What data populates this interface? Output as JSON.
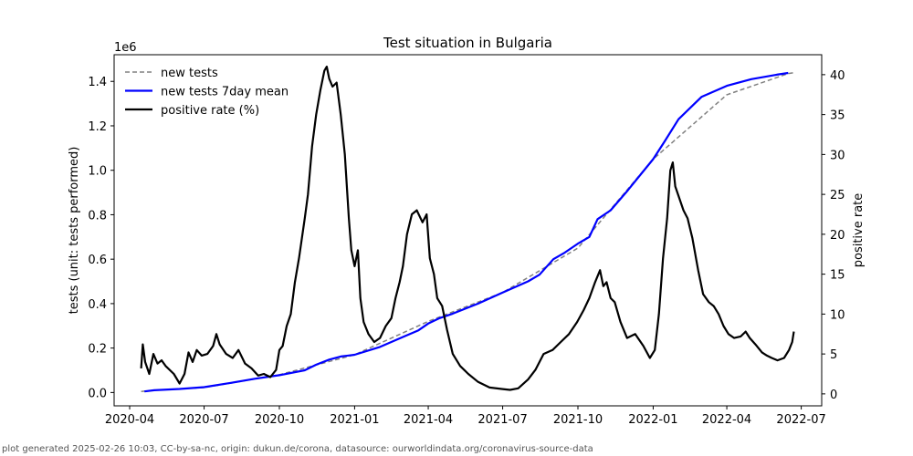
{
  "chart_data": {
    "type": "line",
    "title": "Test situation in Bulgaria",
    "ylabel_left": "tests (unit: tests performed)",
    "ylabel_right": "positive rate",
    "left_scale_label": "1e6",
    "ylim_left": [
      -0.06,
      1.52
    ],
    "ylim_right": [
      -1.5,
      42.5
    ],
    "xlim": [
      "2020-03-13",
      "2022-07-26"
    ],
    "x_ticks": [
      "2020-04",
      "2020-07",
      "2020-10",
      "2021-01",
      "2021-04",
      "2021-07",
      "2021-10",
      "2022-01",
      "2022-04",
      "2022-07"
    ],
    "y_ticks_left": [
      "0.0",
      "0.2",
      "0.4",
      "0.6",
      "0.8",
      "1.0",
      "1.2",
      "1.4"
    ],
    "y_ticks_left_values": [
      0.0,
      0.2,
      0.4,
      0.6,
      0.8,
      1.0,
      1.2,
      1.4
    ],
    "y_ticks_right": [
      "0",
      "5",
      "10",
      "15",
      "20",
      "25",
      "30",
      "35",
      "40"
    ],
    "y_ticks_right_values": [
      0,
      5,
      10,
      15,
      20,
      25,
      30,
      35,
      40
    ],
    "legend": [
      "new tests",
      "new tests 7day mean",
      "positive rate (%)"
    ],
    "legend_position": "top-left",
    "series": [
      {
        "name": "new tests",
        "axis": "left",
        "style": "dashed",
        "color": "#808080",
        "points": [
          [
            "2020-04-15",
            0.005
          ],
          [
            "2020-05-01",
            0.01
          ],
          [
            "2020-07-01",
            0.022
          ],
          [
            "2020-10-01",
            0.08
          ],
          [
            "2021-01-01",
            0.17
          ],
          [
            "2021-04-01",
            0.32
          ],
          [
            "2021-07-01",
            0.45
          ],
          [
            "2021-10-01",
            0.65
          ],
          [
            "2022-01-01",
            1.05
          ],
          [
            "2022-04-01",
            1.34
          ],
          [
            "2022-06-15",
            1.435
          ],
          [
            "2022-06-24",
            1.44
          ]
        ]
      },
      {
        "name": "new tests 7day mean",
        "axis": "left",
        "style": "solid",
        "color": "#0000ff",
        "points": [
          [
            "2020-04-19",
            0.005
          ],
          [
            "2020-05-01",
            0.01
          ],
          [
            "2020-06-01",
            0.016
          ],
          [
            "2020-07-01",
            0.024
          ],
          [
            "2020-08-01",
            0.042
          ],
          [
            "2020-09-01",
            0.062
          ],
          [
            "2020-10-01",
            0.078
          ],
          [
            "2020-11-01",
            0.1
          ],
          [
            "2020-11-15",
            0.125
          ],
          [
            "2020-12-01",
            0.148
          ],
          [
            "2020-12-15",
            0.162
          ],
          [
            "2021-01-01",
            0.17
          ],
          [
            "2021-02-01",
            0.205
          ],
          [
            "2021-03-01",
            0.25
          ],
          [
            "2021-03-20",
            0.28
          ],
          [
            "2021-04-01",
            0.31
          ],
          [
            "2021-04-15",
            0.335
          ],
          [
            "2021-05-01",
            0.355
          ],
          [
            "2021-06-01",
            0.4
          ],
          [
            "2021-07-01",
            0.45
          ],
          [
            "2021-08-01",
            0.5
          ],
          [
            "2021-08-15",
            0.53
          ],
          [
            "2021-09-01",
            0.6
          ],
          [
            "2021-09-15",
            0.63
          ],
          [
            "2021-10-01",
            0.67
          ],
          [
            "2021-10-15",
            0.7
          ],
          [
            "2021-10-25",
            0.78
          ],
          [
            "2021-11-10",
            0.82
          ],
          [
            "2021-12-01",
            0.91
          ],
          [
            "2022-01-01",
            1.05
          ],
          [
            "2022-01-15",
            1.13
          ],
          [
            "2022-02-01",
            1.23
          ],
          [
            "2022-03-01",
            1.33
          ],
          [
            "2022-04-01",
            1.38
          ],
          [
            "2022-05-01",
            1.41
          ],
          [
            "2022-06-01",
            1.43
          ],
          [
            "2022-06-15",
            1.438
          ]
        ]
      },
      {
        "name": "positive rate (%)",
        "axis": "right",
        "style": "solid",
        "color": "#000000",
        "points": [
          [
            "2020-04-15",
            3.2
          ],
          [
            "2020-04-17",
            6.2
          ],
          [
            "2020-04-20",
            4.0
          ],
          [
            "2020-04-25",
            2.5
          ],
          [
            "2020-04-30",
            5.0
          ],
          [
            "2020-05-05",
            3.8
          ],
          [
            "2020-05-10",
            4.2
          ],
          [
            "2020-05-15",
            3.5
          ],
          [
            "2020-05-25",
            2.5
          ],
          [
            "2020-06-01",
            1.3
          ],
          [
            "2020-06-07",
            2.5
          ],
          [
            "2020-06-12",
            5.2
          ],
          [
            "2020-06-17",
            4.0
          ],
          [
            "2020-06-22",
            5.5
          ],
          [
            "2020-06-28",
            4.8
          ],
          [
            "2020-07-05",
            5.0
          ],
          [
            "2020-07-12",
            6.0
          ],
          [
            "2020-07-16",
            7.5
          ],
          [
            "2020-07-20",
            6.2
          ],
          [
            "2020-07-28",
            5.0
          ],
          [
            "2020-08-05",
            4.5
          ],
          [
            "2020-08-12",
            5.5
          ],
          [
            "2020-08-20",
            3.8
          ],
          [
            "2020-08-28",
            3.2
          ],
          [
            "2020-09-05",
            2.3
          ],
          [
            "2020-09-12",
            2.5
          ],
          [
            "2020-09-20",
            2.1
          ],
          [
            "2020-09-27",
            3.0
          ],
          [
            "2020-10-01",
            5.5
          ],
          [
            "2020-10-05",
            6.0
          ],
          [
            "2020-10-10",
            8.5
          ],
          [
            "2020-10-15",
            10.0
          ],
          [
            "2020-10-20",
            14.0
          ],
          [
            "2020-10-25",
            17.0
          ],
          [
            "2020-11-01",
            22.0
          ],
          [
            "2020-11-05",
            25.0
          ],
          [
            "2020-11-10",
            31.0
          ],
          [
            "2020-11-15",
            35.0
          ],
          [
            "2020-11-20",
            38.0
          ],
          [
            "2020-11-25",
            40.5
          ],
          [
            "2020-11-28",
            41.0
          ],
          [
            "2020-12-01",
            39.5
          ],
          [
            "2020-12-05",
            38.5
          ],
          [
            "2020-12-10",
            39.0
          ],
          [
            "2020-12-15",
            35.0
          ],
          [
            "2020-12-20",
            30.0
          ],
          [
            "2020-12-25",
            22.0
          ],
          [
            "2020-12-28",
            18.0
          ],
          [
            "2021-01-01",
            16.0
          ],
          [
            "2021-01-05",
            18.0
          ],
          [
            "2021-01-08",
            12.0
          ],
          [
            "2021-01-12",
            9.0
          ],
          [
            "2021-01-18",
            7.5
          ],
          [
            "2021-01-25",
            6.5
          ],
          [
            "2021-02-01",
            7.0
          ],
          [
            "2021-02-08",
            8.5
          ],
          [
            "2021-02-15",
            9.5
          ],
          [
            "2021-02-20",
            12.0
          ],
          [
            "2021-02-25",
            14.0
          ],
          [
            "2021-03-01",
            16.0
          ],
          [
            "2021-03-06",
            20.0
          ],
          [
            "2021-03-12",
            22.5
          ],
          [
            "2021-03-18",
            23.0
          ],
          [
            "2021-03-25",
            21.5
          ],
          [
            "2021-03-30",
            22.5
          ],
          [
            "2021-04-03",
            17.0
          ],
          [
            "2021-04-08",
            15.0
          ],
          [
            "2021-04-12",
            12.0
          ],
          [
            "2021-04-18",
            11.0
          ],
          [
            "2021-04-24",
            8.0
          ],
          [
            "2021-05-01",
            5.0
          ],
          [
            "2021-05-10",
            3.5
          ],
          [
            "2021-05-20",
            2.5
          ],
          [
            "2021-06-01",
            1.5
          ],
          [
            "2021-06-15",
            0.8
          ],
          [
            "2021-07-01",
            0.6
          ],
          [
            "2021-07-10",
            0.5
          ],
          [
            "2021-07-20",
            0.7
          ],
          [
            "2021-08-01",
            1.8
          ],
          [
            "2021-08-10",
            3.0
          ],
          [
            "2021-08-20",
            5.0
          ],
          [
            "2021-08-31",
            5.5
          ],
          [
            "2021-09-10",
            6.5
          ],
          [
            "2021-09-20",
            7.5
          ],
          [
            "2021-09-30",
            9.0
          ],
          [
            "2021-10-08",
            10.5
          ],
          [
            "2021-10-15",
            12.0
          ],
          [
            "2021-10-22",
            14.0
          ],
          [
            "2021-10-28",
            15.5
          ],
          [
            "2021-11-01",
            13.5
          ],
          [
            "2021-11-05",
            14.0
          ],
          [
            "2021-11-10",
            12.0
          ],
          [
            "2021-11-15",
            11.5
          ],
          [
            "2021-11-22",
            9.0
          ],
          [
            "2021-11-30",
            7.0
          ],
          [
            "2021-12-10",
            7.5
          ],
          [
            "2021-12-20",
            6.0
          ],
          [
            "2021-12-28",
            4.5
          ],
          [
            "2022-01-03",
            5.5
          ],
          [
            "2022-01-08",
            10.0
          ],
          [
            "2022-01-13",
            17.0
          ],
          [
            "2022-01-18",
            22.0
          ],
          [
            "2022-01-22",
            28.0
          ],
          [
            "2022-01-25",
            29.0
          ],
          [
            "2022-01-28",
            26.0
          ],
          [
            "2022-02-02",
            24.5
          ],
          [
            "2022-02-07",
            23.0
          ],
          [
            "2022-02-12",
            22.0
          ],
          [
            "2022-02-18",
            19.5
          ],
          [
            "2022-02-25",
            15.5
          ],
          [
            "2022-03-03",
            12.5
          ],
          [
            "2022-03-10",
            11.5
          ],
          [
            "2022-03-16",
            11.0
          ],
          [
            "2022-03-22",
            10.0
          ],
          [
            "2022-03-28",
            8.5
          ],
          [
            "2022-04-03",
            7.5
          ],
          [
            "2022-04-10",
            7.0
          ],
          [
            "2022-04-18",
            7.2
          ],
          [
            "2022-04-24",
            7.8
          ],
          [
            "2022-04-29",
            7.0
          ],
          [
            "2022-05-06",
            6.2
          ],
          [
            "2022-05-14",
            5.2
          ],
          [
            "2022-05-20",
            4.8
          ],
          [
            "2022-05-26",
            4.5
          ],
          [
            "2022-06-02",
            4.2
          ],
          [
            "2022-06-10",
            4.5
          ],
          [
            "2022-06-16",
            5.5
          ],
          [
            "2022-06-20",
            6.5
          ],
          [
            "2022-06-22",
            7.8
          ]
        ]
      }
    ]
  },
  "footer": "plot generated 2025-02-26 10:03, CC-by-sa-nc, origin: dukun.de/corona, datasource: ourworldindata.org/coronavirus-source-data"
}
